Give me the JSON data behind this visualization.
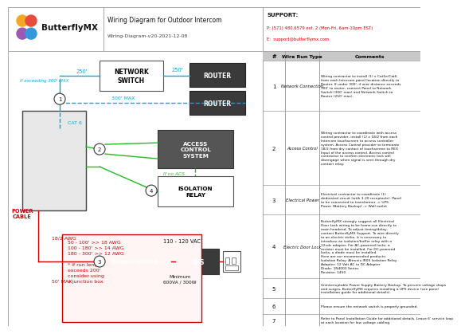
{
  "title": "Wiring Diagram for Outdoor Intercom",
  "subtitle": "Wiring-Diagram-v20-2021-12-08",
  "company": "ButterflyMX",
  "support_title": "SUPPORT:",
  "support_phone": "P: (571) 480.6579 ext. 2 (Mon-Fri, 6am-10pm EST)",
  "support_email": "E:  support@butterflymx.com",
  "cyan": "#00aadd",
  "green": "#22bb22",
  "red": "#cc0000",
  "dark_gray": "#3a3a3a",
  "wire_run_rows": [
    {
      "num": "1",
      "type": "Network Connection",
      "comments": "Wiring contractor to install (1) x Cat5e/Cat6\nfrom each Intercom panel location directly to\nRouter. If under 300', if wire distance exceeds\n300' to router, connect Panel to Network\nSwitch (300' max) and Network Switch to\nRouter (250' max)."
    },
    {
      "num": "2",
      "type": "Access Control",
      "comments": "Wiring contractor to coordinate with access\ncontrol provider, install (1) x 18/2 from each\nIntercom touchscreen to access controller\nsystem. Access Control provider to terminate\n18/2 from dry contact of touchscreen to REX\nInput of the access control. Access control\ncontractor to confirm electronic lock will\ndisengage when signal is sent through dry\ncontact relay."
    },
    {
      "num": "3",
      "type": "Electrical Power",
      "comments": "Electrical contractor to coordinate (1)\ndedicated circuit (with 3-20 receptacle). Panel\nto be connected to transformer -> UPS\nPower (Battery Backup) -> Wall outlet"
    },
    {
      "num": "4",
      "type": "Electric Door Lock",
      "comments": "ButterflyMX strongly suggest all Electrical\nDoor Lock wiring to be home-run directly to\nmain headend. To adjust timing/delay,\ncontact ButterflyMX Support. To wire directly\nto an electric strike, it is necessary to\nintroduce an isolation/buffer relay with a\n12vdc adapter. For AC-powered locks, a\nresistor must be installed. For DC-powered\nlocks, a diode must be installed.\nHere are our recommended products:\nIsolation Relay: Altronix IR05 Isolation Relay\nAdapter: 12 Volt AC to DC Adapter\nDiode: 1N4003 Series\nResistor: 1450"
    },
    {
      "num": "5",
      "type": "",
      "comments": "Uninterruptable Power Supply Battery Backup. To prevent voltage drops\nand surges, ButterflyMX requires installing a UPS device (see panel\ninstallation guide for additional details)."
    },
    {
      "num": "6",
      "type": "",
      "comments": "Please ensure the network switch is properly grounded."
    },
    {
      "num": "7",
      "type": "",
      "comments": "Refer to Panel Installation Guide for additional details. Leave 6' service loop\nat each location for low voltage cabling."
    }
  ],
  "awg_text": "50 - 100' >> 18 AWG\n100 - 180' >> 14 AWG\n180 - 300' >> 12 AWG\n\n* If run length\nexceeds 200'\nconsider using\na junction box"
}
